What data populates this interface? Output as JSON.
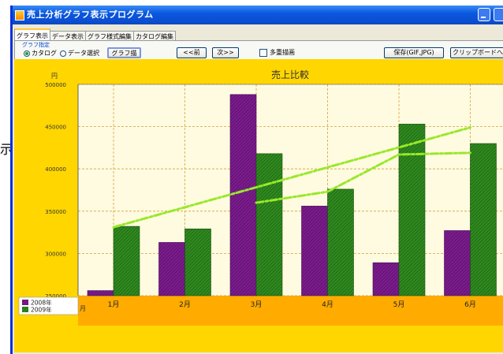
{
  "side_text": "示",
  "window": {
    "title": "売上分析グラフ表示プログラム"
  },
  "tabs": [
    "グラフ表示",
    "データ表示",
    "グラフ様式編集",
    "カタログ編集"
  ],
  "graph_spec": {
    "group_label": "グラフ指定",
    "options": [
      "カタログ",
      "データ選択"
    ],
    "selected": "カタログ",
    "draw_button": "グラフ描画"
  },
  "nav": {
    "prev": "<<前",
    "next": "次>>"
  },
  "overlay_label": "多重描画",
  "save_button": "保存(GIF,JPG)",
  "clipboard_button": "クリップボードへ",
  "chart_data": {
    "type": "bar",
    "title": "売上比較",
    "y_unit": "円",
    "x_unit": "月",
    "categories": [
      "1月",
      "2月",
      "3月",
      "4月",
      "5月",
      "6月"
    ],
    "ylim": [
      250000,
      500000
    ],
    "yticks": [
      "250000",
      "300000",
      "350000",
      "400000",
      "450000",
      "500000"
    ],
    "grid": true,
    "legend_position": "bottom-left",
    "series": [
      {
        "name": "2008年",
        "values": [
          256000,
          313000,
          488000,
          356000,
          289000,
          327000
        ],
        "color": "#7b1c8c"
      },
      {
        "name": "2009年",
        "values": [
          332000,
          329000,
          418000,
          376000,
          453000,
          430000
        ],
        "color": "#2f8a1f"
      }
    ],
    "trend_lines": [
      {
        "values": [
          331000,
          449000
        ],
        "from": "1月",
        "to": "6月"
      },
      {
        "values": [
          360000,
          373000,
          417000,
          419000
        ],
        "from": "3月",
        "to": "6月"
      }
    ],
    "colors": {
      "background": "#ffd600",
      "plot": "#fffbe0",
      "axis_band": "#ffab00",
      "trend": "#99e82a",
      "grid": "#d4a040"
    }
  }
}
